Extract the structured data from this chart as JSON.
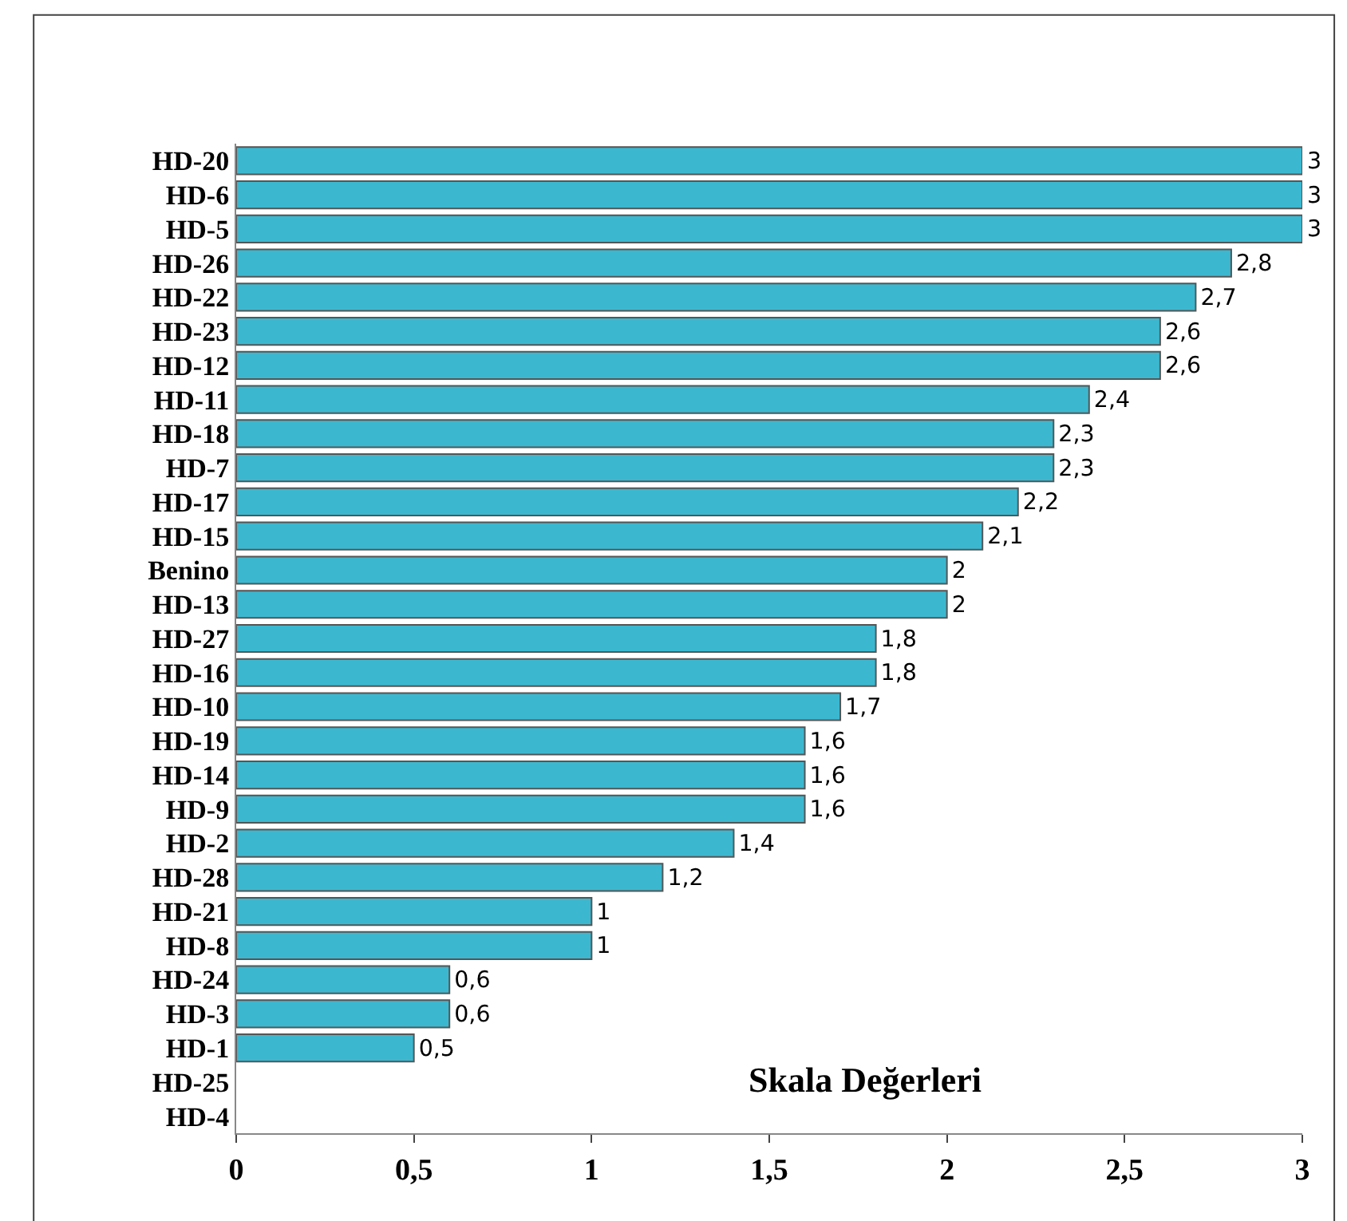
{
  "chart_data": {
    "type": "bar",
    "orientation": "horizontal",
    "title": "Skala Değerleri",
    "categories": [
      "HD-20",
      "HD-6",
      "HD-5",
      "HD-26",
      "HD-22",
      "HD-23",
      "HD-12",
      "HD-11",
      "HD-18",
      "HD-7",
      "HD-17",
      "HD-15",
      "Benino",
      "HD-13",
      "HD-27",
      "HD-16",
      "HD-10",
      "HD-19",
      "HD-14",
      "HD-9",
      "HD-2",
      "HD-28",
      "HD-21",
      "HD-8",
      "HD-24",
      "HD-3",
      "HD-1",
      "HD-25",
      "HD-4"
    ],
    "values": [
      3,
      3,
      3,
      2.8,
      2.7,
      2.6,
      2.6,
      2.4,
      2.3,
      2.3,
      2.2,
      2.1,
      2,
      2,
      1.8,
      1.8,
      1.7,
      1.6,
      1.6,
      1.6,
      1.4,
      1.2,
      1,
      1,
      0.6,
      0.6,
      0.5,
      null,
      null
    ],
    "value_labels": [
      "3",
      "3",
      "3",
      "2,8",
      "2,7",
      "2,6",
      "2,6",
      "2,4",
      "2,3",
      "2,3",
      "2,2",
      "2,1",
      "2",
      "2",
      "1,8",
      "1,8",
      "1,7",
      "1,6",
      "1,6",
      "1,6",
      "1,4",
      "1,2",
      "1",
      "1",
      "0,6",
      "0,6",
      "0,5",
      null,
      null
    ],
    "color": "#3bb8d0",
    "xlim": [
      0,
      3
    ],
    "xticks": [
      0,
      {
        "value": 0.5,
        "label": "0,5"
      },
      1,
      {
        "value": 1.5,
        "label": "1,5"
      },
      2,
      {
        "value": 2.5,
        "label": "2,5"
      },
      3
    ],
    "legend": false
  }
}
